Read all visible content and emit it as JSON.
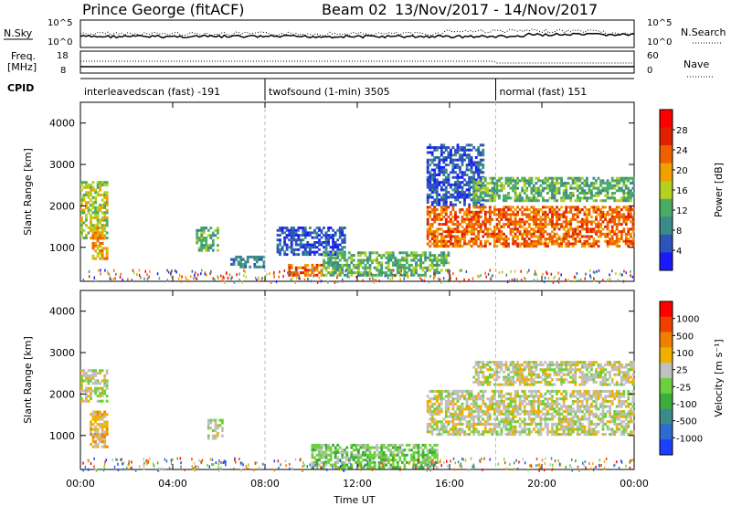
{
  "header": {
    "station": "Prince George (fitACF)",
    "beam": "Beam 02",
    "date_range": "13/Nov/2017 - 14/Nov/2017"
  },
  "params": {
    "nsky_label": "N.Sky",
    "nsky_ticks": [
      "10^5",
      "10^0"
    ],
    "nsearch_label": "N.Search",
    "nsearch_ticks": [
      "10^5",
      "10^0"
    ],
    "freq_label_1": "Freq.",
    "freq_label_2": "[MHz]",
    "freq_ticks": [
      "18",
      "8"
    ],
    "nave_label": "Nave",
    "nave_ticks": [
      "60",
      "0"
    ],
    "cpid_label": "CPID"
  },
  "cpid_segments": [
    {
      "label": "interleavedscan (fast) -191",
      "start_hour": 0
    },
    {
      "label": "twofsound (1-min) 3505",
      "start_hour": 8
    },
    {
      "label": "normal (fast) 151",
      "start_hour": 18
    }
  ],
  "chart_data": [
    {
      "type": "heatmap",
      "name": "power",
      "ylabel": "Slant Range [km]",
      "xlabel": "Time UT",
      "x_ticks": [
        "00:00",
        "04:00",
        "08:00",
        "12:00",
        "16:00",
        "20:00",
        "00:00"
      ],
      "x_hours": [
        0,
        4,
        8,
        12,
        16,
        20,
        24
      ],
      "y_ticks": [
        1000,
        2000,
        3000,
        4000
      ],
      "ylim": [
        180,
        4500
      ],
      "colorbar": {
        "label": "Power [dB]",
        "ticks": [
          "4",
          "8",
          "12",
          "16",
          "20",
          "24",
          "28"
        ],
        "colors": [
          "#1a1aff",
          "#2d54b8",
          "#3c8a8a",
          "#4cac64",
          "#b6d020",
          "#f0a000",
          "#f06000",
          "#e02000",
          "#ff0000"
        ]
      },
      "regions": [
        {
          "h0": 0.0,
          "h1": 1.2,
          "r0": 1200,
          "r1": 2600,
          "level": 4
        },
        {
          "h0": 0.5,
          "h1": 1.2,
          "r0": 700,
          "r1": 1500,
          "level": 5
        },
        {
          "h0": 5.0,
          "h1": 6.0,
          "r0": 900,
          "r1": 1500,
          "level": 3
        },
        {
          "h0": 6.5,
          "h1": 8.0,
          "r0": 500,
          "r1": 800,
          "level": 2
        },
        {
          "h0": 8.5,
          "h1": 11.5,
          "r0": 800,
          "r1": 1500,
          "level": 1
        },
        {
          "h0": 9.0,
          "h1": 10.5,
          "r0": 300,
          "r1": 600,
          "level": 6
        },
        {
          "h0": 10.5,
          "h1": 16.0,
          "r0": 300,
          "r1": 900,
          "level": 3
        },
        {
          "h0": 15.0,
          "h1": 24.0,
          "r0": 1000,
          "r1": 2000,
          "level": 6
        },
        {
          "h0": 15.0,
          "h1": 17.5,
          "r0": 2000,
          "r1": 3500,
          "level": 1
        },
        {
          "h0": 17.0,
          "h1": 24.0,
          "r0": 2100,
          "r1": 2700,
          "level": 3
        }
      ]
    },
    {
      "type": "heatmap",
      "name": "velocity",
      "ylabel": "Slant Range [km]",
      "xlabel": "Time UT",
      "x_ticks": [
        "00:00",
        "04:00",
        "08:00",
        "12:00",
        "16:00",
        "20:00",
        "00:00"
      ],
      "x_hours": [
        0,
        4,
        8,
        12,
        16,
        20,
        24
      ],
      "y_ticks": [
        1000,
        2000,
        3000,
        4000
      ],
      "ylim": [
        180,
        4500
      ],
      "colorbar": {
        "label": "Velocity [m s⁻¹]",
        "ticks": [
          "1000",
          "500",
          "100",
          "25",
          "-25",
          "-100",
          "-500",
          "-1000"
        ],
        "colors": [
          "#1a3fff",
          "#2d6bd0",
          "#3c8a8a",
          "#3cac3c",
          "#6cd03c",
          "#c0c0c0",
          "#f0b000",
          "#f08000",
          "#f04000",
          "#ff0000"
        ]
      },
      "regions": [
        {
          "h0": 0.0,
          "h1": 1.2,
          "r0": 1800,
          "r1": 2600,
          "level": 5
        },
        {
          "h0": 0.4,
          "h1": 1.2,
          "r0": 700,
          "r1": 1600,
          "level": 6
        },
        {
          "h0": 5.5,
          "h1": 6.2,
          "r0": 900,
          "r1": 1400,
          "level": 5
        },
        {
          "h0": 10.0,
          "h1": 15.5,
          "r0": 200,
          "r1": 800,
          "level": 4
        },
        {
          "h0": 15.0,
          "h1": 24.0,
          "r0": 1000,
          "r1": 2100,
          "level": 5
        },
        {
          "h0": 17.0,
          "h1": 24.0,
          "r0": 2200,
          "r1": 2800,
          "level": 5
        }
      ]
    }
  ]
}
